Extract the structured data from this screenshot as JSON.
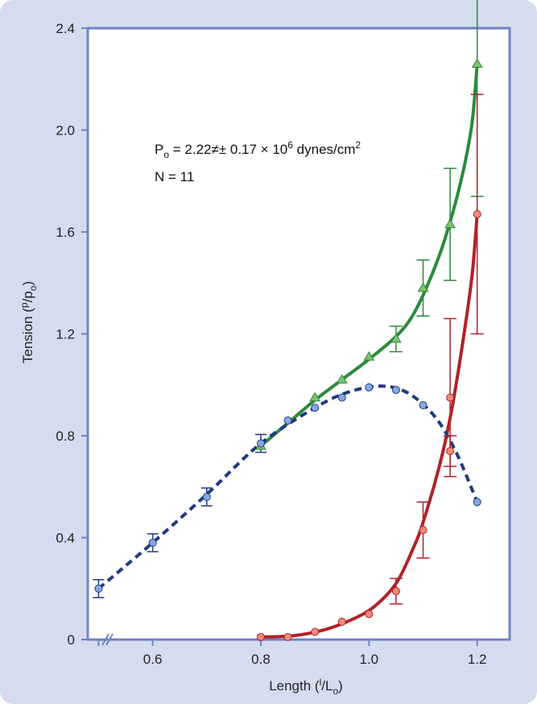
{
  "chart_data": {
    "type": "line",
    "title": "",
    "xlabel": {
      "main": "Length (",
      "sup": "l",
      "sep": "/",
      "sub_main": "L",
      "sub": "o",
      "close": ")"
    },
    "ylabel": {
      "main": "Tension (",
      "sup": "p",
      "sep": "/",
      "sub_main": "p",
      "sub": "o",
      "close": ")"
    },
    "xlim": [
      0.48,
      1.26
    ],
    "ylim": [
      0,
      2.4
    ],
    "x_ticks": [
      0.6,
      0.8,
      1.0,
      1.2
    ],
    "x_tick_labels": [
      "0.6",
      "0.8",
      "1.0",
      "1.2"
    ],
    "y_ticks": [
      0,
      0.4,
      0.8,
      1.2,
      1.6,
      2.0,
      2.4
    ],
    "y_tick_labels": [
      "0",
      "0.4",
      "0.8",
      "1.2",
      "1.6",
      "2.0",
      "2.4"
    ],
    "grid": false,
    "x_axis_break": true,
    "annotations": {
      "po_prefix": "P",
      "po_sub": "o",
      "po_value": " = 2.22≠± 0.17 × 10",
      "po_exp": "6",
      "po_unit": " dynes/cm",
      "po_unit_exp": "2",
      "n_text": "N = 11"
    },
    "colors": {
      "frame": "#d5dcef",
      "axes": "#6f82c4",
      "active": "#2c8a3c",
      "active_marker": "#7fbf6e",
      "passive": "#b0222a",
      "passive_marker": "#f08a78",
      "total": "#213a7e",
      "total_marker": "#86a8e2"
    },
    "series": [
      {
        "marker": "triangle",
        "style": "solid",
        "points": [
          {
            "x": 0.8,
            "y": 0.76
          },
          {
            "x": 0.9,
            "y": 0.95
          },
          {
            "x": 0.95,
            "y": 1.02
          },
          {
            "x": 1.0,
            "y": 1.11
          },
          {
            "x": 1.05,
            "y": 1.18,
            "err": 0.05
          },
          {
            "x": 1.1,
            "y": 1.38,
            "err": 0.11
          },
          {
            "x": 1.15,
            "y": 1.63,
            "err": 0.22
          },
          {
            "x": 1.2,
            "y": 2.26,
            "err": 0.52
          }
        ]
      },
      {
        "marker": "circle",
        "style": "solid",
        "points": [
          {
            "x": 0.8,
            "y": 0.01
          },
          {
            "x": 0.85,
            "y": 0.01
          },
          {
            "x": 0.9,
            "y": 0.03
          },
          {
            "x": 0.95,
            "y": 0.07
          },
          {
            "x": 1.0,
            "y": 0.1
          },
          {
            "x": 1.05,
            "y": 0.19,
            "err": 0.05
          },
          {
            "x": 1.1,
            "y": 0.43,
            "err": 0.11
          },
          {
            "x": 1.15,
            "y": 0.74,
            "err": 0.06
          },
          {
            "x": 1.15,
            "y": 0.95,
            "err": 0.31
          },
          {
            "x": 1.2,
            "y": 1.67,
            "err": 0.47
          }
        ]
      },
      {
        "marker": "circle",
        "style": "dashed",
        "points": [
          {
            "x": 0.5,
            "y": 0.2,
            "err": 0.035
          },
          {
            "x": 0.6,
            "y": 0.38,
            "err": 0.035
          },
          {
            "x": 0.7,
            "y": 0.56,
            "err": 0.035
          },
          {
            "x": 0.8,
            "y": 0.77,
            "err": 0.035
          },
          {
            "x": 0.85,
            "y": 0.86
          },
          {
            "x": 0.9,
            "y": 0.91
          },
          {
            "x": 0.95,
            "y": 0.95
          },
          {
            "x": 1.0,
            "y": 0.99
          },
          {
            "x": 1.05,
            "y": 0.98
          },
          {
            "x": 1.1,
            "y": 0.92
          },
          {
            "x": 1.2,
            "y": 0.54
          }
        ]
      }
    ],
    "curves": [
      {
        "series": 0,
        "points": [
          [
            0.8,
            0.76
          ],
          [
            0.85,
            0.85
          ],
          [
            0.9,
            0.94
          ],
          [
            0.95,
            1.02
          ],
          [
            1.0,
            1.1
          ],
          [
            1.05,
            1.19
          ],
          [
            1.08,
            1.27
          ],
          [
            1.11,
            1.4
          ],
          [
            1.14,
            1.57
          ],
          [
            1.17,
            1.8
          ],
          [
            1.19,
            2.02
          ],
          [
            1.2,
            2.26
          ]
        ]
      },
      {
        "series": 1,
        "points": [
          [
            0.8,
            0.01
          ],
          [
            0.86,
            0.015
          ],
          [
            0.92,
            0.04
          ],
          [
            0.97,
            0.08
          ],
          [
            1.01,
            0.13
          ],
          [
            1.05,
            0.22
          ],
          [
            1.08,
            0.35
          ],
          [
            1.1,
            0.46
          ],
          [
            1.13,
            0.68
          ],
          [
            1.15,
            0.87
          ],
          [
            1.17,
            1.12
          ],
          [
            1.19,
            1.42
          ],
          [
            1.2,
            1.67
          ]
        ]
      },
      {
        "series": 2,
        "points": [
          [
            0.5,
            0.2
          ],
          [
            0.6,
            0.38
          ],
          [
            0.7,
            0.57
          ],
          [
            0.8,
            0.77
          ],
          [
            0.9,
            0.91
          ],
          [
            0.96,
            0.97
          ],
          [
            1.02,
            0.995
          ],
          [
            1.07,
            0.97
          ],
          [
            1.12,
            0.88
          ],
          [
            1.16,
            0.74
          ],
          [
            1.2,
            0.54
          ]
        ]
      }
    ]
  }
}
